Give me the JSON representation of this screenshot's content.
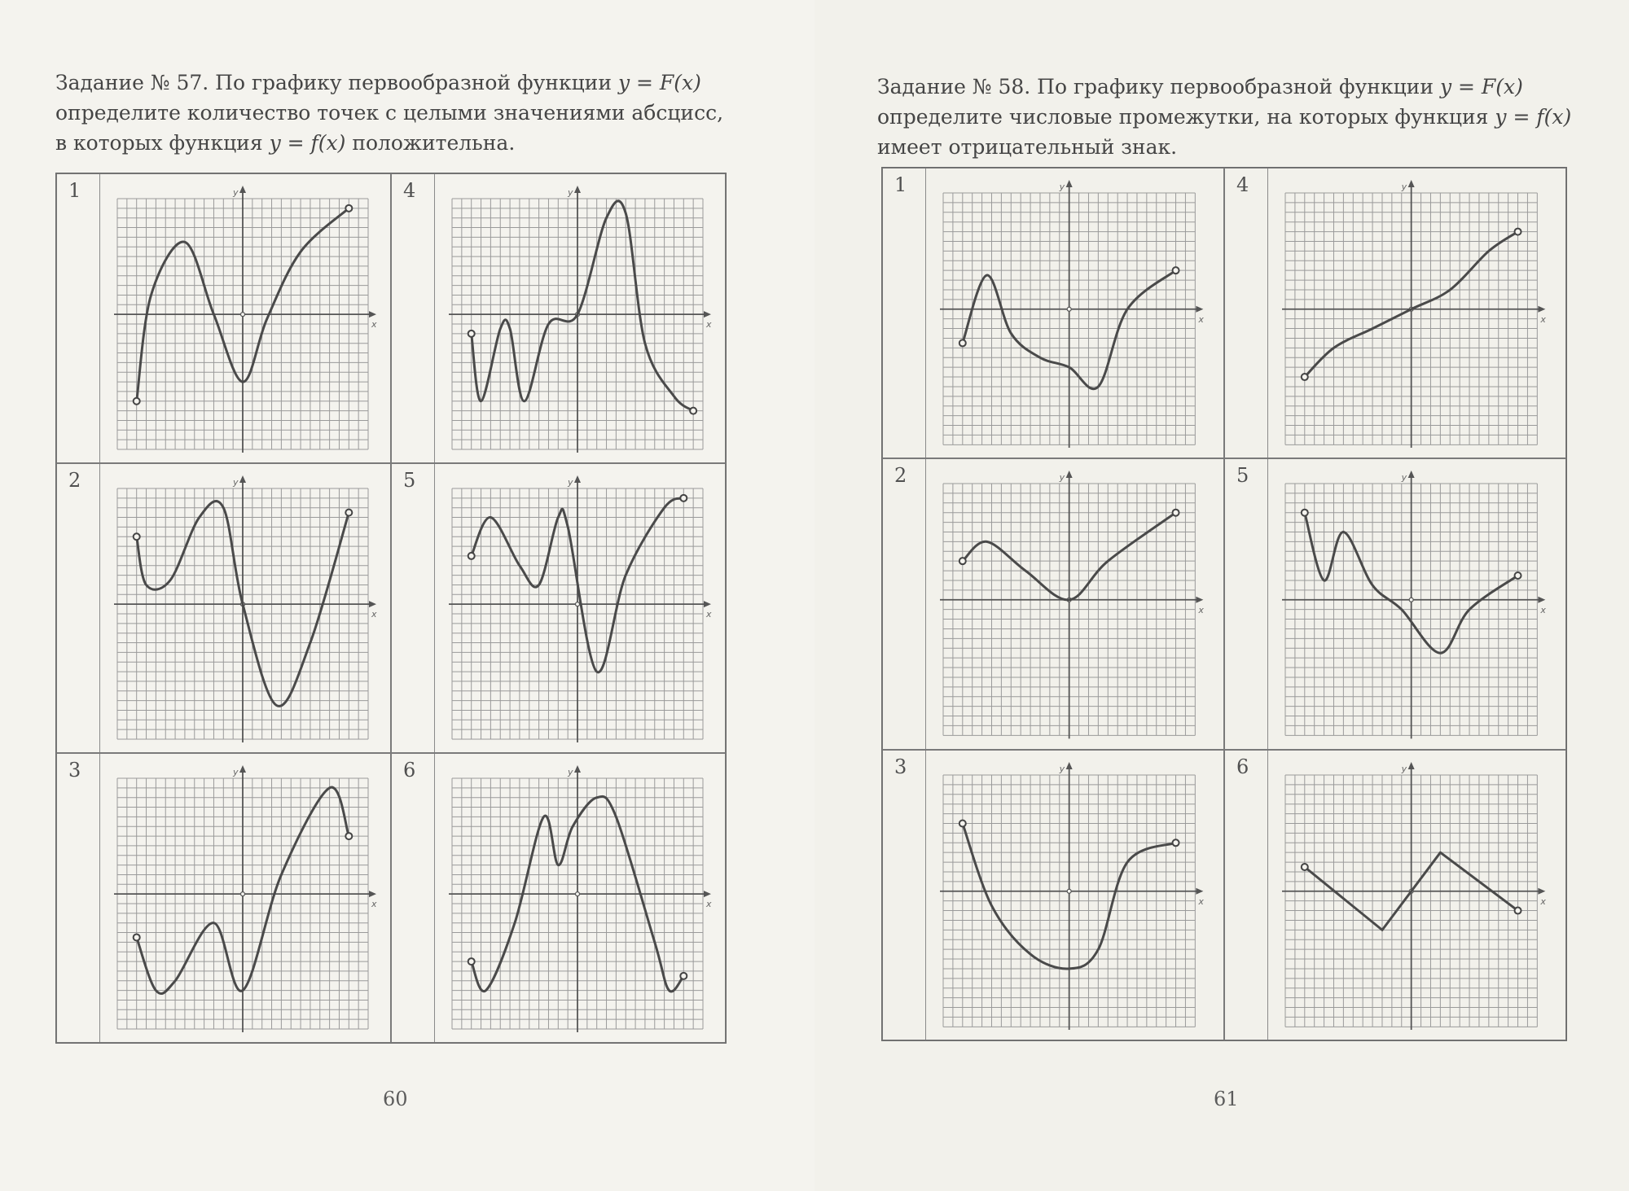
{
  "left": {
    "task": {
      "line1": "Задание № 57. По графику первообразной функции ",
      "line1_formula": "y = F(x)",
      "line2": "определите количество точек с целыми значениями абсцисс,",
      "line3_a": "в которых функция ",
      "line3_formula": "y = f(x)",
      "line3_b": " положительна."
    },
    "page_number": "60",
    "cells": [
      {
        "num": "1",
        "points": [
          [
            -11,
            -9
          ],
          [
            -9.5,
            2
          ],
          [
            -6,
            7.5
          ],
          [
            -3,
            0
          ],
          [
            0,
            -7
          ],
          [
            2.5,
            -0.5
          ],
          [
            6,
            6.5
          ],
          [
            11,
            11
          ]
        ]
      },
      {
        "num": "2",
        "points": [
          [
            -11,
            7
          ],
          [
            -10,
            2
          ],
          [
            -7.5,
            2.5
          ],
          [
            -4.5,
            9
          ],
          [
            -2,
            10
          ],
          [
            0,
            0
          ],
          [
            3.5,
            -10.5
          ],
          [
            7,
            -4
          ],
          [
            11,
            9.5
          ]
        ]
      },
      {
        "num": "3",
        "points": [
          [
            -11,
            -4.5
          ],
          [
            -9,
            -10
          ],
          [
            -7,
            -9
          ],
          [
            -3,
            -3
          ],
          [
            0,
            -10
          ],
          [
            4,
            2
          ],
          [
            9,
            11
          ],
          [
            11,
            6
          ]
        ]
      },
      {
        "num": "4",
        "points": [
          [
            -11,
            -2
          ],
          [
            -10,
            -9
          ],
          [
            -8,
            -1.5
          ],
          [
            -7,
            -1.5
          ],
          [
            -5.5,
            -9
          ],
          [
            -3,
            -1
          ],
          [
            0,
            0
          ],
          [
            3,
            10
          ],
          [
            5,
            10.5
          ],
          [
            7,
            -3
          ],
          [
            10,
            -8.5
          ],
          [
            12,
            -10
          ]
        ]
      },
      {
        "num": "5",
        "points": [
          [
            -11,
            5
          ],
          [
            -9,
            9
          ],
          [
            -6,
            4
          ],
          [
            -4,
            2
          ],
          [
            -2,
            9
          ],
          [
            -1,
            8
          ],
          [
            2,
            -7
          ],
          [
            5,
            3
          ],
          [
            9,
            10
          ],
          [
            11,
            11
          ]
        ]
      },
      {
        "num": "6",
        "points": [
          [
            -11,
            -7
          ],
          [
            -9.5,
            -10
          ],
          [
            -6.5,
            -3
          ],
          [
            -3.5,
            8
          ],
          [
            -2,
            3
          ],
          [
            -0.5,
            7
          ],
          [
            2,
            10
          ],
          [
            4,
            8
          ],
          [
            8,
            -5
          ],
          [
            9.5,
            -10
          ],
          [
            11,
            -8.5
          ]
        ]
      }
    ]
  },
  "right": {
    "task": {
      "line1": "Задание № 58. По графику первообразной функции ",
      "line1_formula": "y = F(x)",
      "line2": "определите числовые промежутки, на которых функция ",
      "line2_formula": "y = f(x)",
      "line3": "имеет отрицательный знак."
    },
    "page_number": "61",
    "cells": [
      {
        "num": "1",
        "points": [
          [
            -11,
            -3.5
          ],
          [
            -8.5,
            3.5
          ],
          [
            -6,
            -2.5
          ],
          [
            -3,
            -5
          ],
          [
            0,
            -6
          ],
          [
            3,
            -8
          ],
          [
            6,
            0
          ],
          [
            11,
            4
          ]
        ]
      },
      {
        "num": "2",
        "points": [
          [
            -11,
            4
          ],
          [
            -8.5,
            6
          ],
          [
            -4.5,
            3
          ],
          [
            0,
            0
          ],
          [
            4,
            4
          ],
          [
            11,
            9
          ]
        ]
      },
      {
        "num": "3",
        "points": [
          [
            -11,
            7
          ],
          [
            -8,
            -1.5
          ],
          [
            -4,
            -6.5
          ],
          [
            0,
            -8
          ],
          [
            3,
            -6
          ],
          [
            6,
            3
          ],
          [
            11,
            5
          ]
        ]
      },
      {
        "num": "4",
        "points": [
          [
            -11,
            -7
          ],
          [
            -8,
            -4
          ],
          [
            -4,
            -2
          ],
          [
            0,
            0
          ],
          [
            4,
            2
          ],
          [
            8,
            6
          ],
          [
            11,
            8
          ]
        ]
      },
      {
        "num": "5",
        "points": [
          [
            -11,
            9
          ],
          [
            -9,
            2
          ],
          [
            -7,
            7
          ],
          [
            -4,
            1.5
          ],
          [
            -1,
            -1
          ],
          [
            3,
            -5.5
          ],
          [
            6,
            -1
          ],
          [
            11,
            2.5
          ]
        ]
      },
      {
        "num": "6",
        "points": [
          [
            -11,
            2.5
          ],
          [
            -3,
            -4
          ],
          [
            3,
            4
          ],
          [
            11,
            -2
          ]
        ]
      }
    ]
  }
}
